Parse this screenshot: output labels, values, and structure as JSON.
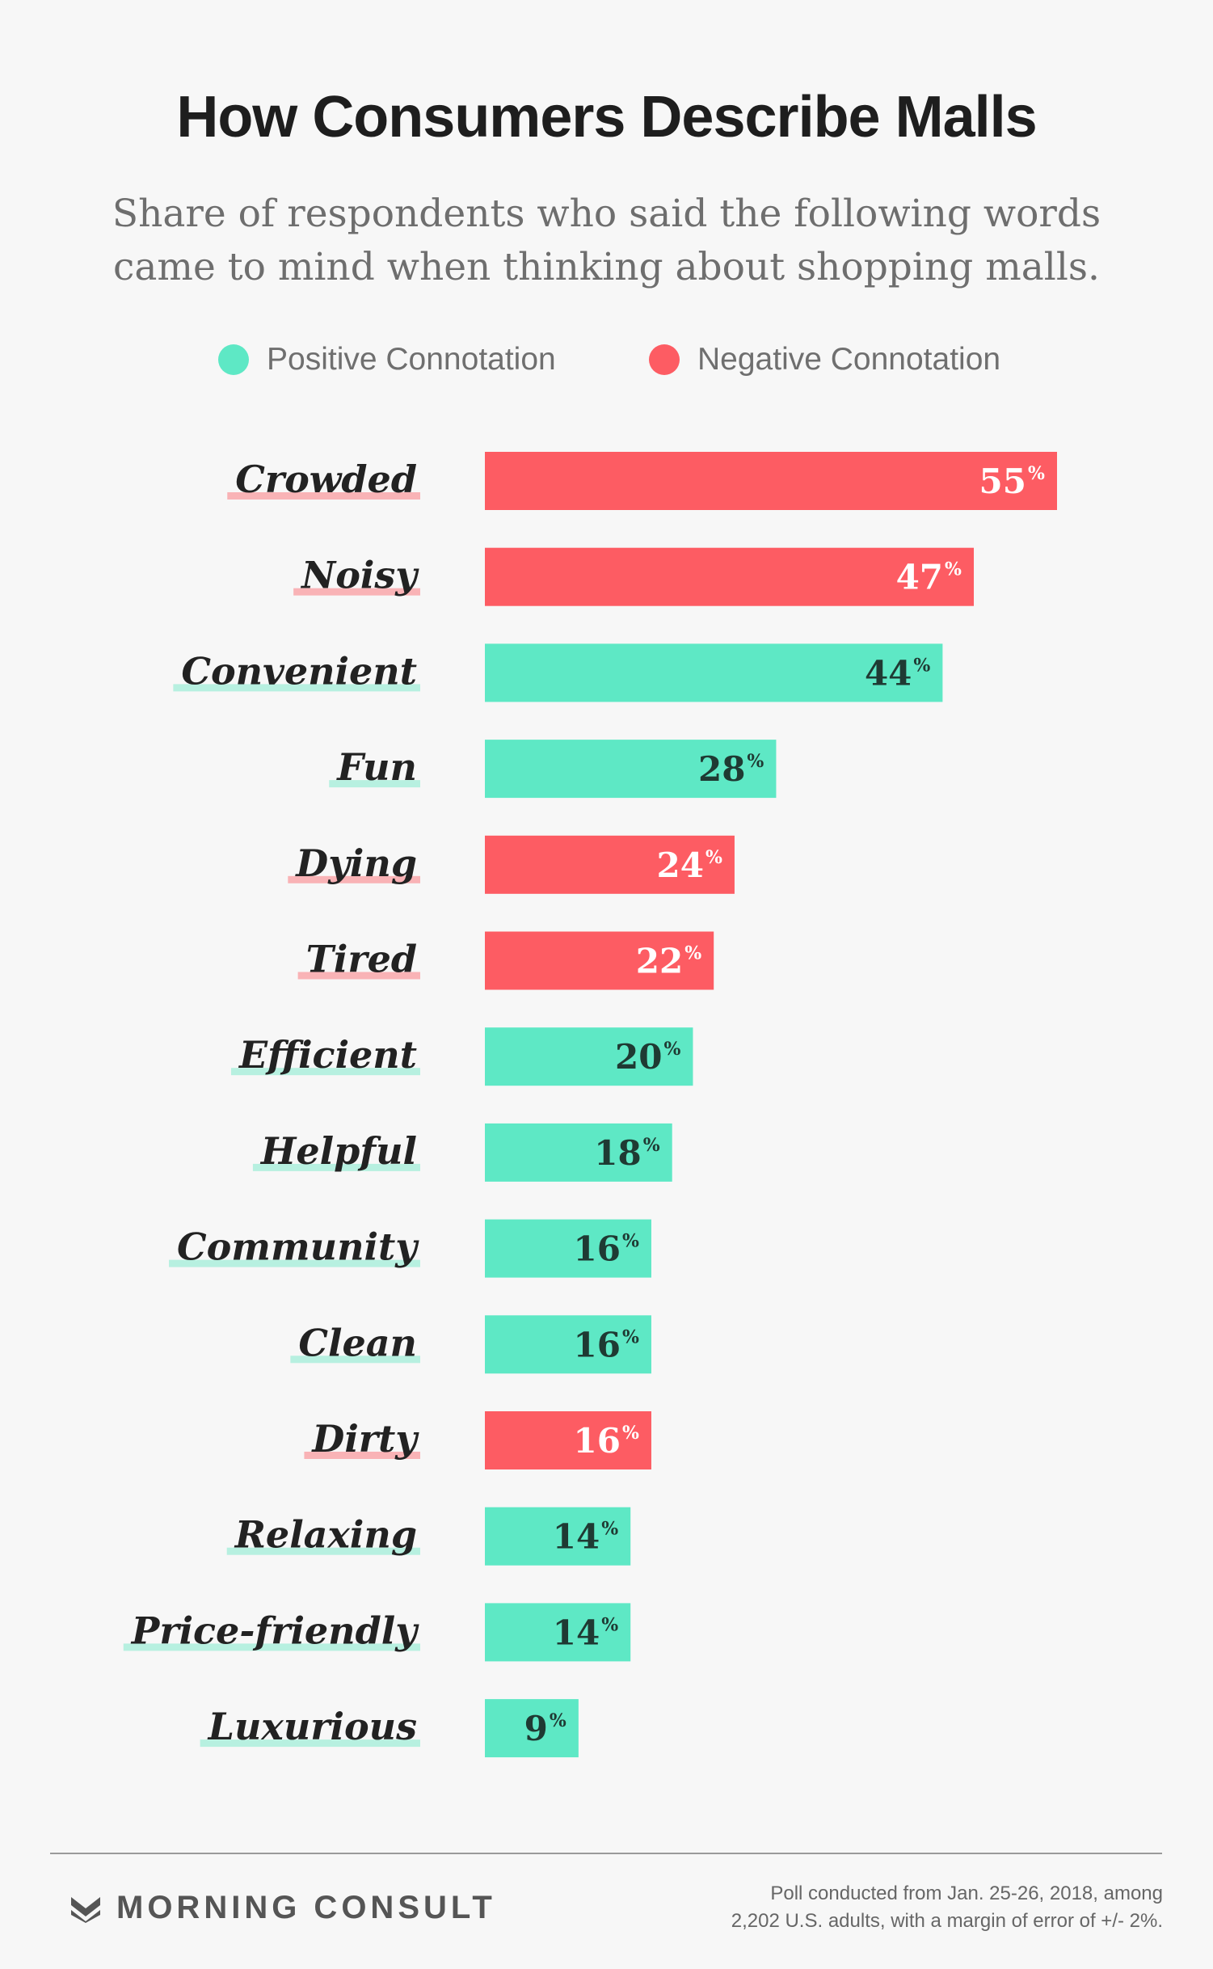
{
  "title": "How Consumers Describe Malls",
  "subtitle": "Share of respondents who said the following words came to mind when thinking about shopping malls.",
  "legend": {
    "positive": {
      "label": "Positive Connotation",
      "color": "#5ee8c5"
    },
    "negative": {
      "label": "Negative Connotation",
      "color": "#fd5c63"
    }
  },
  "chart_data": {
    "type": "bar",
    "orientation": "horizontal",
    "title": "How Consumers Describe Malls",
    "unit": "%",
    "categories": [
      "Crowded",
      "Noisy",
      "Convenient",
      "Fun",
      "Dying",
      "Tired",
      "Efficient",
      "Helpful",
      "Community",
      "Clean",
      "Dirty",
      "Relaxing",
      "Price-friendly",
      "Luxurious"
    ],
    "values": [
      55,
      47,
      44,
      28,
      24,
      22,
      20,
      18,
      16,
      16,
      16,
      14,
      14,
      9
    ],
    "connotation": [
      "negative",
      "negative",
      "positive",
      "positive",
      "negative",
      "negative",
      "positive",
      "positive",
      "positive",
      "positive",
      "negative",
      "positive",
      "positive",
      "positive"
    ],
    "series": [
      {
        "name": "Positive Connotation",
        "color": "#5ee8c5"
      },
      {
        "name": "Negative Connotation",
        "color": "#fd5c63"
      }
    ],
    "xlim": [
      0,
      55
    ],
    "grid": false,
    "legend_position": "top"
  },
  "footer": {
    "brand": "MORNING CONSULT",
    "note_line1": "Poll conducted from Jan. 25-26, 2018, among",
    "note_line2": "2,202 U.S. adults, with a margin of error of +/- 2%."
  }
}
